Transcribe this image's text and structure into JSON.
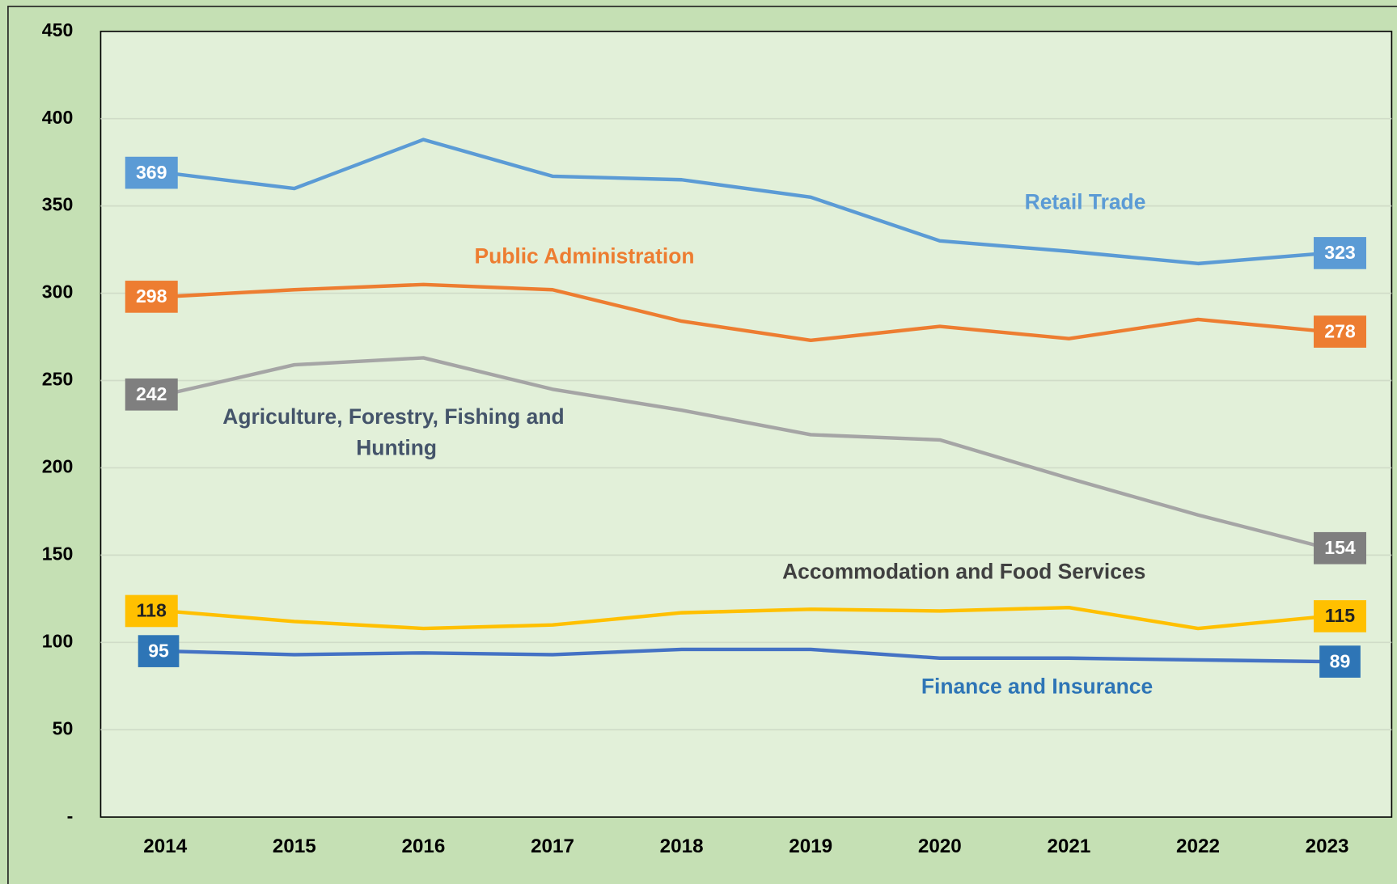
{
  "chart_data": {
    "type": "line",
    "categories": [
      "2014",
      "2015",
      "2016",
      "2017",
      "2018",
      "2019",
      "2020",
      "2021",
      "2022",
      "2023"
    ],
    "series": [
      {
        "name": "Retail Trade",
        "color": "#5b9bd5",
        "values": [
          369,
          360,
          388,
          367,
          365,
          355,
          330,
          324,
          317,
          323
        ]
      },
      {
        "name": "Public Administration",
        "color": "#ed7d31",
        "values": [
          298,
          302,
          305,
          302,
          284,
          273,
          281,
          274,
          285,
          278
        ]
      },
      {
        "name": "Agriculture, Forestry, Fishing and Hunting",
        "color": "#a5a5a5",
        "values": [
          242,
          259,
          263,
          245,
          233,
          219,
          216,
          194,
          173,
          154
        ]
      },
      {
        "name": "Accommodation and Food Services",
        "color": "#ffc000",
        "values": [
          118,
          112,
          108,
          110,
          117,
          119,
          118,
          120,
          108,
          115
        ]
      },
      {
        "name": "Finance and Insurance",
        "color": "#4472c4",
        "values": [
          95,
          93,
          94,
          93,
          96,
          96,
          91,
          91,
          90,
          89
        ]
      }
    ],
    "ylim": [
      0,
      450
    ],
    "yticks": [
      {
        "value": 0,
        "label": "-"
      },
      50,
      100,
      150,
      200,
      250,
      300,
      350,
      400,
      450
    ],
    "grid": true
  }
}
